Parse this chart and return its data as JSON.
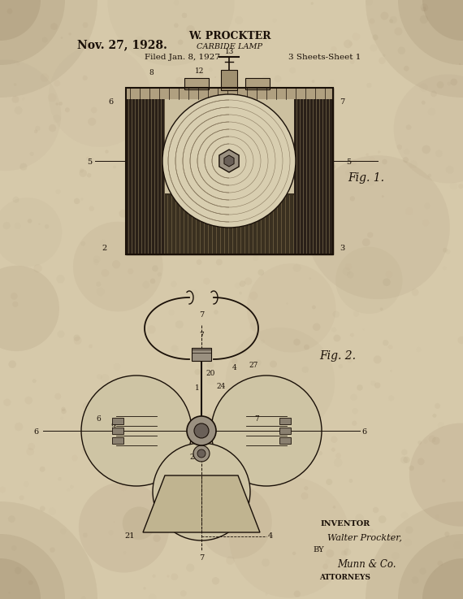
{
  "bg_color": "#d6c9aa",
  "text_color": "#1a1008",
  "date": "Nov. 27, 1928.",
  "inventor_name": "W. PROCKTER",
  "patent_title": "CARBIDE LAMP",
  "filed": "Filed Jan. 8, 1927",
  "sheets": "3 Sheets-Sheet 1",
  "fig1_label": "Fig. 1.",
  "fig2_label": "Fig. 2.",
  "fig_width": 5.7,
  "fig_height": 7.37,
  "dpi": 100
}
